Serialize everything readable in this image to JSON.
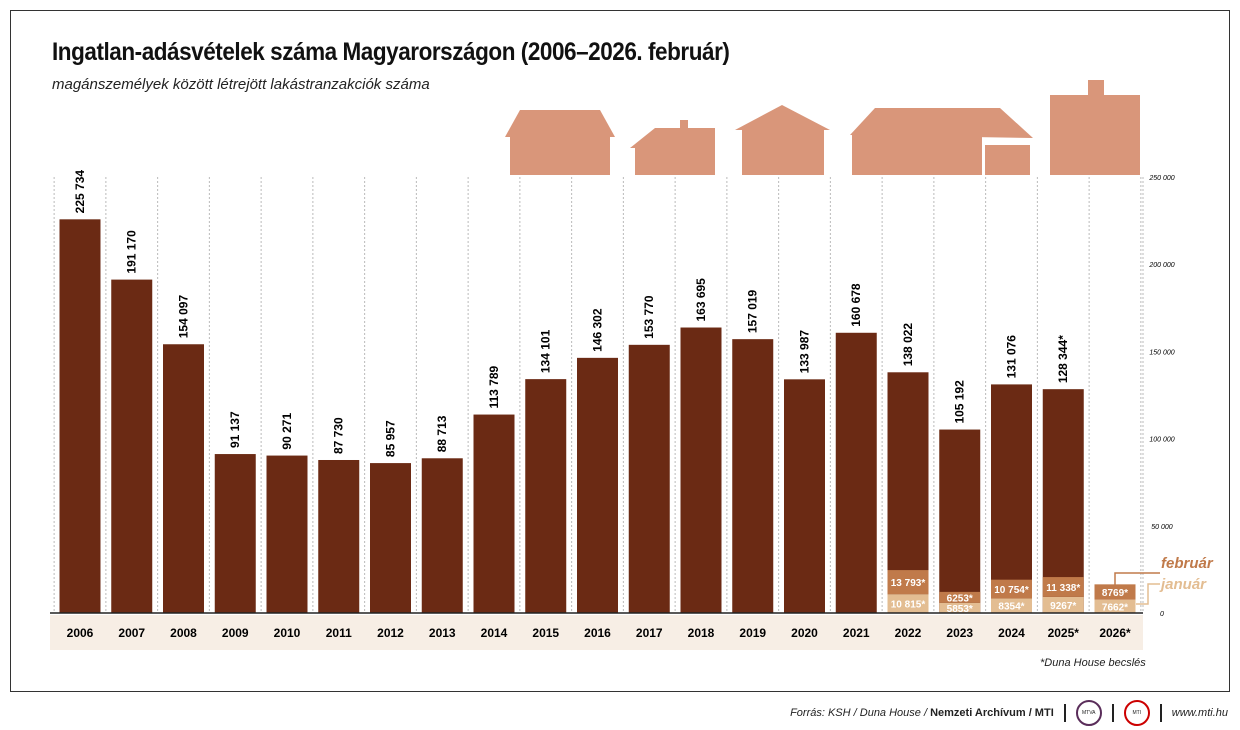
{
  "title": "Ingatlan-adásvételek száma Magyarországon (2006–2026. február)",
  "subtitle": "magánszemélyek között létrejött lakástranzakciók száma",
  "note": "*Duna House becslés",
  "footer": {
    "source_prefix": "Forrás: KSH / Duna House / ",
    "source_bold": "Nemzeti Archívum / MTI",
    "logo1": "MTVA",
    "logo2": "MTI",
    "url": "www.mti.hu"
  },
  "colors": {
    "annual": "#6b2a14",
    "february": "#c07a4a",
    "january": "#e3bd92",
    "band": "#f7eee5"
  },
  "chart_data": {
    "type": "bar",
    "categories": [
      "2006",
      "2007",
      "2008",
      "2009",
      "2010",
      "2011",
      "2012",
      "2013",
      "2014",
      "2015",
      "2016",
      "2017",
      "2018",
      "2019",
      "2020",
      "2021",
      "2022",
      "2023",
      "2024",
      "2025*",
      "2026*"
    ],
    "values": [
      225734,
      191170,
      154097,
      91137,
      90271,
      87730,
      85957,
      88713,
      113789,
      134101,
      146302,
      153770,
      163695,
      157019,
      133987,
      160678,
      138022,
      105192,
      131076,
      128344,
      null
    ],
    "value_labels": [
      "225 734",
      "191 170",
      "154 097",
      "91 137",
      "90 271",
      "87 730",
      "85 957",
      "88 713",
      "113 789",
      "134 101",
      "146 302",
      "153 770",
      "163 695",
      "157 019",
      "133 987",
      "160 678",
      "138 022",
      "105 192",
      "131 076",
      "128 344*",
      ""
    ],
    "january": [
      null,
      null,
      null,
      null,
      null,
      null,
      null,
      null,
      null,
      null,
      null,
      null,
      null,
      null,
      null,
      null,
      10815,
      5853,
      8354,
      9267,
      7662
    ],
    "january_labels": [
      "",
      "",
      "",
      "",
      "",
      "",
      "",
      "",
      "",
      "",
      "",
      "",
      "",
      "",
      "",
      "",
      "10 815*",
      "5853*",
      "8354*",
      "9267*",
      "7662*"
    ],
    "february": [
      null,
      null,
      null,
      null,
      null,
      null,
      null,
      null,
      null,
      null,
      null,
      null,
      null,
      null,
      null,
      null,
      13793,
      6253,
      10754,
      11338,
      8769
    ],
    "february_labels": [
      "",
      "",
      "",
      "",
      "",
      "",
      "",
      "",
      "",
      "",
      "",
      "",
      "",
      "",
      "",
      "",
      "13 793*",
      "6253*",
      "10 754*",
      "11 338*",
      "8769*"
    ],
    "legend": {
      "february": "február",
      "january": "január"
    },
    "yticks": [
      0,
      50000,
      100000,
      150000,
      200000,
      250000
    ],
    "ytick_labels": [
      "0",
      "50 000",
      "100 000",
      "150 000",
      "200 000",
      "250 000"
    ],
    "ylim": [
      0,
      250000
    ],
    "ylabel": "",
    "xlabel": ""
  }
}
